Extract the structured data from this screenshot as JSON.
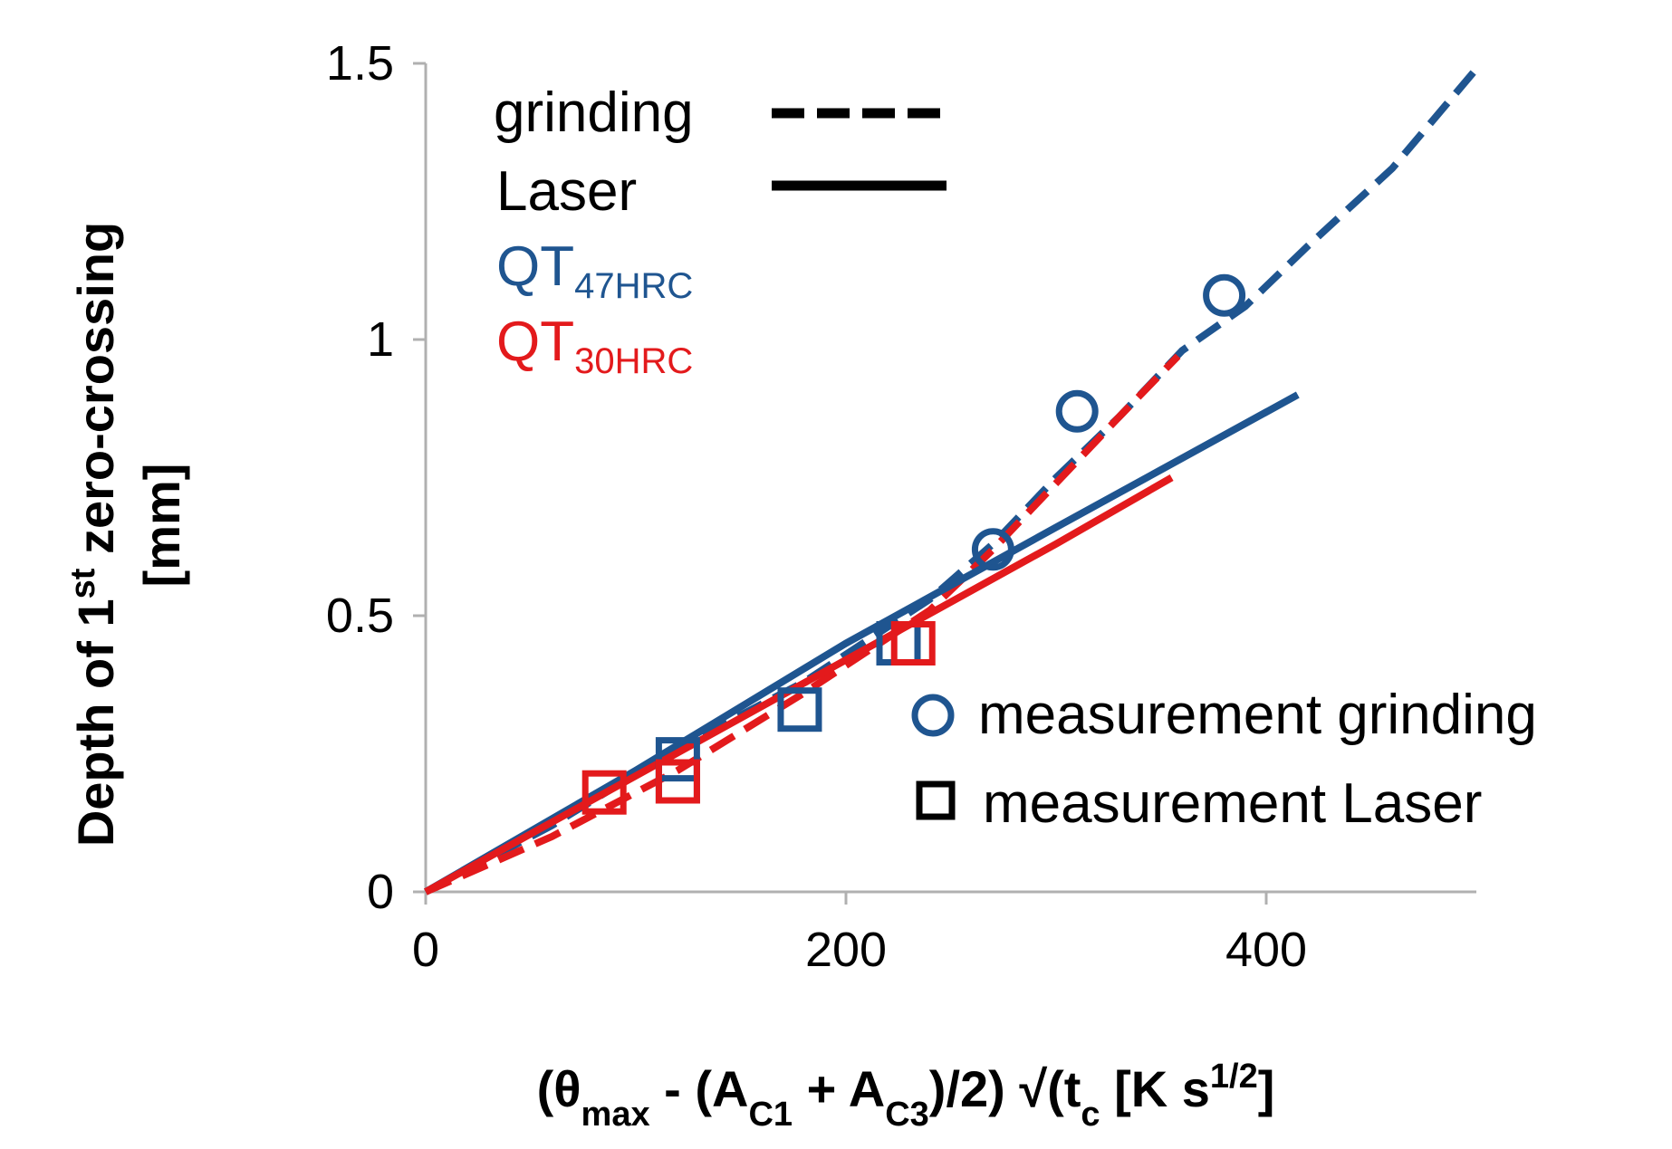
{
  "chart_data": {
    "type": "scatter",
    "xlabel": {
      "parts": [
        {
          "t": "(θ"
        },
        {
          "t": "max",
          "sub": true
        },
        {
          "t": " - (A"
        },
        {
          "t": "C1",
          "sub": true
        },
        {
          "t": " + A"
        },
        {
          "t": "C3",
          "sub": true
        },
        {
          "t": ")/2)  √(t"
        },
        {
          "t": "c",
          "sub": true
        },
        {
          "t": "  [K s"
        },
        {
          "t": "1/2",
          "sup": true
        },
        {
          "t": "]"
        }
      ]
    },
    "ylabel": {
      "line1": [
        {
          "t": "Depth of 1"
        },
        {
          "t": "st",
          "sup": true
        },
        {
          "t": " zero-crossing"
        }
      ],
      "line2": "[mm]"
    },
    "xlim": [
      0,
      500
    ],
    "ylim": [
      0,
      1.5
    ],
    "x_ticks": [
      "0",
      "200",
      "400"
    ],
    "x_tick_values": [
      0,
      200,
      400
    ],
    "y_ticks": [
      "0",
      "0.5",
      "1",
      "1.5"
    ],
    "y_tick_values": [
      0,
      0.5,
      1,
      1.5
    ],
    "colors": {
      "QT47HRC": "#1f5590",
      "QT30HRC": "#e31a1c",
      "axis": "#b0b0b0",
      "legend": "#000000"
    },
    "series": [
      {
        "material": "QT47HRC",
        "process": "grinding",
        "style": "dashed",
        "x": [
          0,
          60,
          120,
          180,
          240,
          270,
          300,
          330,
          360,
          390,
          420,
          460,
          500
        ],
        "y": [
          0,
          0.12,
          0.26,
          0.38,
          0.53,
          0.63,
          0.75,
          0.86,
          0.98,
          1.06,
          1.17,
          1.31,
          1.49
        ]
      },
      {
        "material": "QT30HRC",
        "process": "grinding",
        "style": "dashed",
        "x": [
          0,
          60,
          120,
          180,
          240,
          270,
          300,
          330,
          358
        ],
        "y": [
          0,
          0.1,
          0.22,
          0.36,
          0.51,
          0.62,
          0.74,
          0.86,
          0.97
        ]
      },
      {
        "material": "QT47HRC",
        "process": "Laser",
        "style": "solid",
        "x": [
          0,
          100,
          200,
          300,
          415
        ],
        "y": [
          0,
          0.22,
          0.45,
          0.66,
          0.9
        ]
      },
      {
        "material": "QT30HRC",
        "process": "Laser",
        "style": "solid",
        "x": [
          0,
          100,
          200,
          300,
          355
        ],
        "y": [
          0,
          0.21,
          0.42,
          0.63,
          0.75
        ]
      }
    ],
    "measurements": {
      "grinding": {
        "marker": "circle",
        "points": [
          {
            "material": "QT47HRC",
            "x": 270,
            "y": 0.62
          },
          {
            "material": "QT47HRC",
            "x": 310,
            "y": 0.87
          },
          {
            "material": "QT47HRC",
            "x": 380,
            "y": 1.08
          }
        ]
      },
      "Laser": {
        "marker": "square",
        "points": [
          {
            "material": "QT30HRC",
            "x": 85,
            "y": 0.18
          },
          {
            "material": "QT47HRC",
            "x": 120,
            "y": 0.24
          },
          {
            "material": "QT47HRC",
            "x": 120,
            "y": 0.2
          },
          {
            "material": "QT30HRC",
            "x": 120,
            "y": 0.2
          },
          {
            "material": "QT47HRC",
            "x": 178,
            "y": 0.33
          },
          {
            "material": "QT47HRC",
            "x": 225,
            "y": 0.45
          },
          {
            "material": "QT30HRC",
            "x": 232,
            "y": 0.45
          }
        ]
      }
    },
    "legend": {
      "grinding": "grinding",
      "laser": "Laser",
      "qt47_main": "QT",
      "qt47_sub": "47HRC",
      "qt30_main": "QT",
      "qt30_sub": "30HRC",
      "meas_grinding": "measurement grinding",
      "meas_laser": "measurement Laser"
    }
  }
}
